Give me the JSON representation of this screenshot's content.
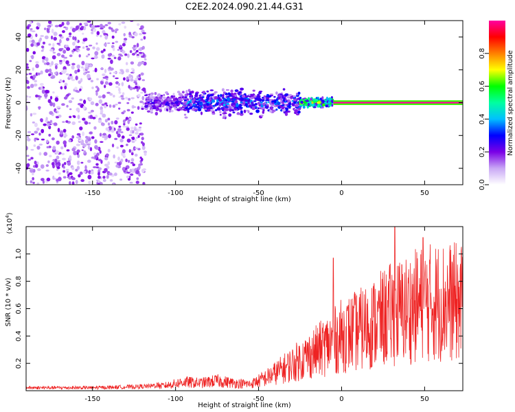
{
  "title": "C2E2.2024.090.21.44.G31",
  "chart_data": [
    {
      "type": "heatmap",
      "title": "C2E2.2024.090.21.44.G31",
      "xlabel": "Height of straight line (km)",
      "ylabel": "Frequency (Hz)",
      "xlim": [
        -190,
        73
      ],
      "ylim": [
        -50,
        50
      ],
      "xticks": [
        -150,
        -100,
        -50,
        0,
        50
      ],
      "yticks": [
        -40,
        -20,
        0,
        20,
        40
      ],
      "grid": false,
      "description_regions": [
        {
          "x_range": [
            -190,
            -118
          ],
          "freq_range": [
            -50,
            50
          ],
          "amplitude": 0.1,
          "kind": "scattered noise"
        },
        {
          "x_range": [
            -118,
            -95
          ],
          "freq_range": [
            -8,
            8
          ],
          "amplitude": 0.18
        },
        {
          "x_range": [
            -95,
            -25
          ],
          "freq_range": [
            -10,
            10
          ],
          "amplitude": 0.25
        },
        {
          "x_range": [
            -25,
            -5
          ],
          "freq_range": [
            -4,
            4
          ],
          "amplitude": 0.45
        },
        {
          "x_range": [
            -5,
            73
          ],
          "freq_range": [
            -1,
            1
          ],
          "amplitude": 1.0,
          "kind": "carrier line"
        }
      ],
      "colorbar": {
        "label": "Normalized spectral amplitude",
        "ticks": [
          0.0,
          0.2,
          0.4,
          0.6,
          0.8
        ],
        "range": [
          0,
          1
        ],
        "colors": [
          "#ffffff",
          "#c9a8f5",
          "#7a00e6",
          "#0000ff",
          "#00c0ff",
          "#00ffa0",
          "#00ff00",
          "#ffff00",
          "#ff8000",
          "#ff0000",
          "#ff00a0"
        ]
      }
    },
    {
      "type": "line",
      "xlabel": "Height of straight line (km)",
      "ylabel": "SNR (10 * v/v)",
      "y_multiplier": "(x10",
      "y_multiplier_exp": "4",
      "y_multiplier_close": ")",
      "xlim": [
        -190,
        73
      ],
      "ylim": [
        0,
        1.2
      ],
      "xticks": [
        -150,
        -100,
        -50,
        0,
        50
      ],
      "yticks": [
        0.2,
        0.4,
        0.6,
        0.8,
        1.0
      ],
      "ytick_labels": [
        "0.2",
        "0.4",
        "0.6",
        "0.8",
        "1.0"
      ],
      "color": "#ee2222",
      "series": [
        {
          "x": [
            -190,
            -170,
            -150,
            -130,
            -115,
            -105,
            -95,
            -85,
            -75,
            -65,
            -55,
            -45,
            -35,
            -25,
            -15,
            -5,
            0,
            10,
            20,
            30,
            40,
            50,
            60,
            73
          ],
          "y": [
            0.02,
            0.02,
            0.02,
            0.025,
            0.03,
            0.05,
            0.08,
            0.07,
            0.09,
            0.07,
            0.06,
            0.12,
            0.2,
            0.28,
            0.36,
            0.45,
            0.5,
            0.55,
            0.62,
            0.7,
            0.75,
            0.8,
            0.82,
            0.8
          ]
        }
      ],
      "peaks": [
        {
          "x": -5,
          "y": 0.97
        },
        {
          "x": 32,
          "y": 1.2
        },
        {
          "x": 49,
          "y": 1.12
        }
      ]
    }
  ]
}
